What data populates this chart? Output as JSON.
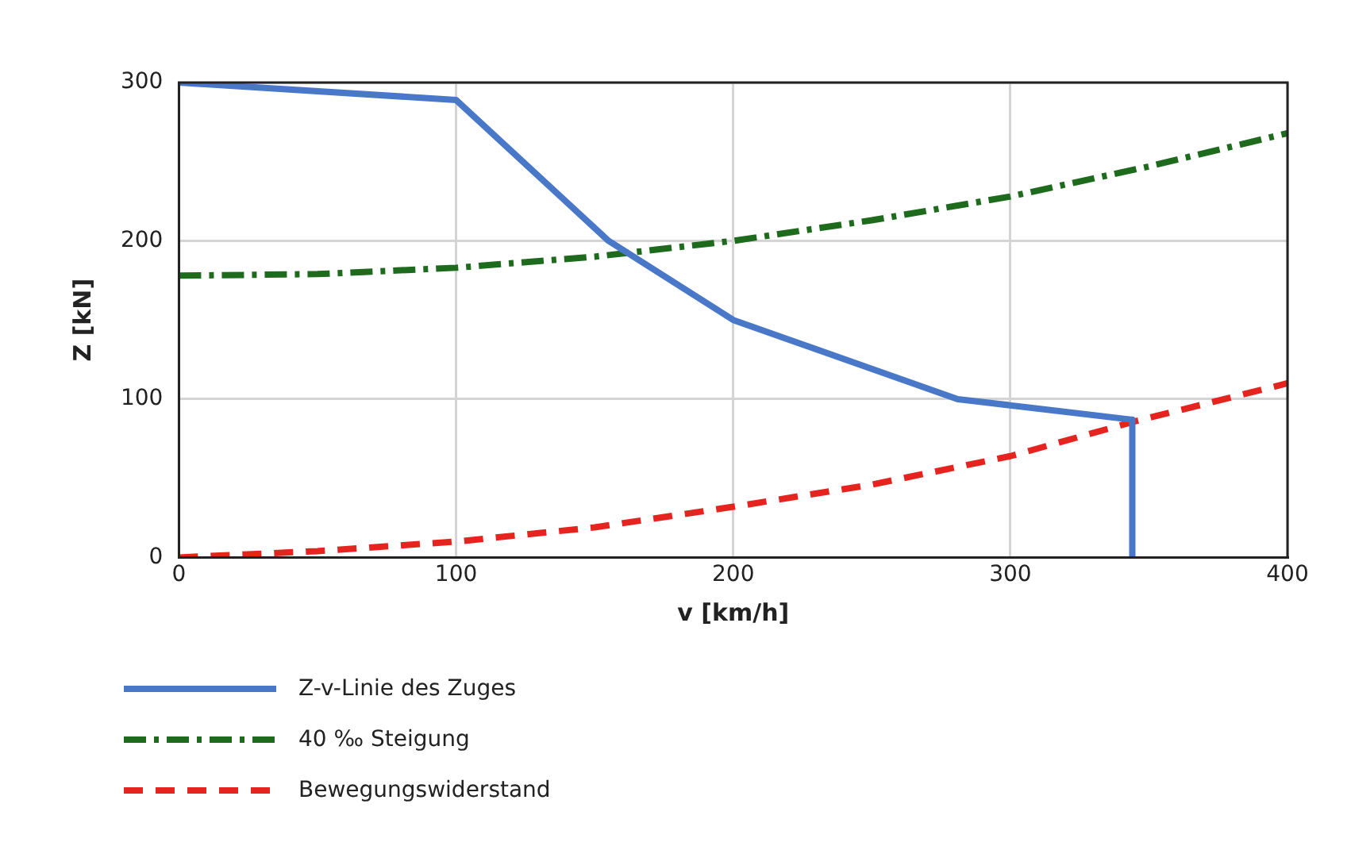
{
  "chart_data": {
    "type": "line",
    "xlabel": "v [km/h]",
    "ylabel": "Z [kN]",
    "xlim": [
      0,
      400
    ],
    "xticks": [
      0,
      100,
      200,
      300,
      400
    ],
    "ylim": [
      0,
      300
    ],
    "yticks": [
      0,
      100,
      200,
      300
    ],
    "grid": true,
    "legend": "bottom left",
    "marker": "none",
    "series": [
      {
        "name": "Z-v-Linie des Zuges",
        "color": "#4a78c8",
        "line_style": "solid",
        "x": [
          0,
          100,
          155,
          200,
          281,
          344,
          344
        ],
        "values": [
          300,
          289,
          200,
          150,
          100,
          87,
          0
        ]
      },
      {
        "name": "40 ‰ Steigung",
        "color": "#1e6b1e",
        "line_style": "dashdot",
        "x": [
          0,
          50,
          100,
          150,
          200,
          250,
          300,
          350,
          400
        ],
        "values": [
          178,
          179,
          183,
          190,
          200,
          213,
          228,
          247,
          268
        ]
      },
      {
        "name": "Bewegungswiderstand",
        "color": "#e52420",
        "line_style": "dashed",
        "x": [
          0,
          50,
          100,
          150,
          200,
          250,
          300,
          345,
          400
        ],
        "values": [
          0,
          4,
          10,
          19,
          32,
          46,
          64,
          86,
          110
        ]
      }
    ]
  }
}
